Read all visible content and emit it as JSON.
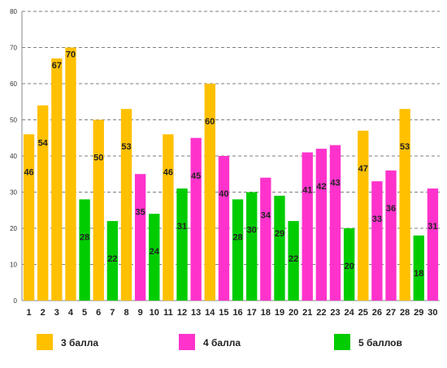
{
  "chart_data": {
    "type": "bar",
    "categories": [
      "1",
      "2",
      "3",
      "4",
      "5",
      "6",
      "7",
      "8",
      "9",
      "10",
      "11",
      "12",
      "13",
      "14",
      "15",
      "16",
      "17",
      "18",
      "19",
      "20",
      "21",
      "22",
      "23",
      "24",
      "25",
      "26",
      "27",
      "28",
      "29",
      "30"
    ],
    "values": [
      46,
      54,
      67,
      70,
      28,
      50,
      22,
      53,
      35,
      24,
      46,
      31,
      45,
      60,
      40,
      28,
      30,
      34,
      29,
      22,
      41,
      42,
      43,
      20,
      47,
      33,
      36,
      53,
      18,
      31
    ],
    "groups": [
      "g3",
      "g3",
      "g3",
      "g3",
      "g5",
      "g3",
      "g5",
      "g3",
      "g4",
      "g5",
      "g3",
      "g5",
      "g4",
      "g3",
      "g4",
      "g5",
      "g5",
      "g4",
      "g5",
      "g5",
      "g4",
      "g4",
      "g4",
      "g5",
      "g3",
      "g4",
      "g4",
      "g3",
      "g5",
      "g4"
    ],
    "legend": [
      {
        "key": "g3",
        "label": "3 балла",
        "color": "#FFC000"
      },
      {
        "key": "g4",
        "label": "4 балла",
        "color": "#FF33CC"
      },
      {
        "key": "g5",
        "label": "5 баллов",
        "color": "#00CC00"
      }
    ],
    "y_ticks": [
      0,
      10,
      20,
      30,
      40,
      50,
      60,
      70,
      80
    ],
    "ylim": [
      0,
      80
    ],
    "grid": true,
    "grid_style": "dashed",
    "legend_position": "bottom",
    "data_labels": true
  }
}
